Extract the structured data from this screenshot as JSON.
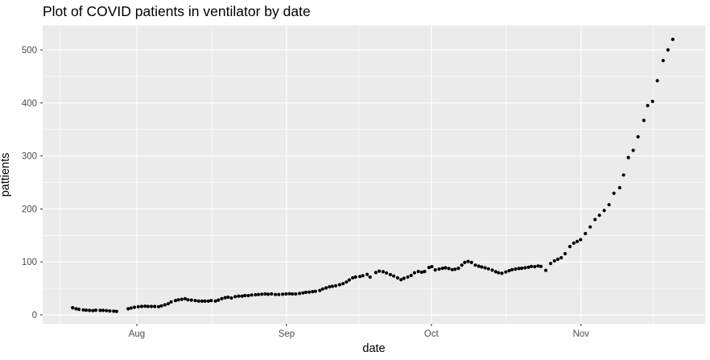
{
  "style": {
    "outer_bg": "#FFFFFF",
    "panel_bg": "#EBEBEB",
    "grid_color": "#FFFFFF",
    "axis_text_color": "#4D4D4D",
    "tick_mark_color": "#333333",
    "text_color": "#000000",
    "point_color": "#000000"
  },
  "chart_data": {
    "type": "scatter",
    "title": "Plot of COVID patients in ventilator by date",
    "xlabel": "date",
    "ylabel": "pattients",
    "x_unit": "days relative to Aug 1 (negative values = July dates)",
    "x_domain": [
      -19.5,
      117.7
    ],
    "y_domain": [
      -16.7,
      546.4
    ],
    "x_ticks": [
      {
        "label": "Aug",
        "day": 0
      },
      {
        "label": "Sep",
        "day": 31
      },
      {
        "label": "Oct",
        "day": 61
      },
      {
        "label": "Nov",
        "day": 92
      }
    ],
    "x_minor_days": [
      -16,
      15.5,
      46,
      76.5,
      107
    ],
    "y_ticks": [
      0,
      100,
      200,
      300,
      400,
      500
    ],
    "y_minor_ticks": [
      50,
      150,
      250,
      350,
      450
    ],
    "grid": "major+minor",
    "legend": "none",
    "series": [
      {
        "name": "patients",
        "points": [
          [
            -13.3,
            13.5
          ],
          [
            -12.6,
            11.5
          ],
          [
            -12,
            10.5
          ],
          [
            -11.1,
            9.5
          ],
          [
            -10.5,
            9
          ],
          [
            -9.8,
            8.5
          ],
          [
            -9.1,
            8
          ],
          [
            -8.5,
            9
          ],
          [
            -7.6,
            8.5
          ],
          [
            -7,
            8.5
          ],
          [
            -6.3,
            8
          ],
          [
            -5.6,
            7.5
          ],
          [
            -4.8,
            7
          ],
          [
            -4.2,
            6.5
          ],
          [
            -1.8,
            11.5
          ],
          [
            -1.2,
            13
          ],
          [
            -0.5,
            14.5
          ],
          [
            0.3,
            15.5
          ],
          [
            1,
            16
          ],
          [
            1.7,
            16.5
          ],
          [
            2.3,
            16
          ],
          [
            3,
            16
          ],
          [
            3.7,
            16
          ],
          [
            4.5,
            15.5
          ],
          [
            5.1,
            17
          ],
          [
            5.8,
            19
          ],
          [
            6.5,
            21
          ],
          [
            7.1,
            24.5
          ],
          [
            8,
            27
          ],
          [
            8.6,
            28.5
          ],
          [
            9.3,
            29.5
          ],
          [
            10,
            30.5
          ],
          [
            10.6,
            28.5
          ],
          [
            11.3,
            28
          ],
          [
            12.1,
            27
          ],
          [
            12.8,
            26
          ],
          [
            13.5,
            26
          ],
          [
            14.1,
            26
          ],
          [
            14.8,
            26
          ],
          [
            15.4,
            27
          ],
          [
            16.3,
            26
          ],
          [
            16.9,
            28
          ],
          [
            17.6,
            30.5
          ],
          [
            18.3,
            32.5
          ],
          [
            18.9,
            33.5
          ],
          [
            19.6,
            32
          ],
          [
            20.4,
            34.5
          ],
          [
            21.1,
            35.5
          ],
          [
            21.8,
            35.5
          ],
          [
            22.4,
            36.5
          ],
          [
            23.1,
            36.5
          ],
          [
            23.8,
            37.5
          ],
          [
            24.6,
            38
          ],
          [
            25.2,
            38.5
          ],
          [
            25.9,
            39
          ],
          [
            26.6,
            39.5
          ],
          [
            27.2,
            39
          ],
          [
            27.9,
            39.5
          ],
          [
            28.7,
            38.5
          ],
          [
            29.4,
            38.5
          ],
          [
            30.2,
            39
          ],
          [
            30.9,
            39.5
          ],
          [
            31.6,
            40
          ],
          [
            32.2,
            39.5
          ],
          [
            32.9,
            39.5
          ],
          [
            33.7,
            40.5
          ],
          [
            34.4,
            41.5
          ],
          [
            35,
            42.5
          ],
          [
            35.7,
            43
          ],
          [
            36.4,
            44
          ],
          [
            37,
            44.5
          ],
          [
            37.9,
            46
          ],
          [
            38.5,
            49
          ],
          [
            39.2,
            51
          ],
          [
            39.9,
            53
          ],
          [
            40.5,
            54
          ],
          [
            41.2,
            55
          ],
          [
            42,
            57
          ],
          [
            42.7,
            59
          ],
          [
            43.4,
            62
          ],
          [
            44,
            66
          ],
          [
            44.7,
            70
          ],
          [
            45.3,
            71.5
          ],
          [
            46.2,
            72.5
          ],
          [
            46.8,
            74
          ],
          [
            47.7,
            76.5
          ],
          [
            48.3,
            71.5
          ],
          [
            49.5,
            80
          ],
          [
            50.2,
            82.5
          ],
          [
            51,
            81.5
          ],
          [
            51.7,
            79
          ],
          [
            52.5,
            76
          ],
          [
            53.2,
            73.5
          ],
          [
            54,
            70
          ],
          [
            54.7,
            66.5
          ],
          [
            55.3,
            69
          ],
          [
            56.1,
            71.5
          ],
          [
            56.8,
            74.5
          ],
          [
            57.5,
            79.5
          ],
          [
            58.3,
            82
          ],
          [
            59,
            80.5
          ],
          [
            59.6,
            82
          ],
          [
            60.5,
            89.5
          ],
          [
            61.1,
            91
          ],
          [
            61.8,
            85
          ],
          [
            62.6,
            86.5
          ],
          [
            63.3,
            88
          ],
          [
            63.9,
            89
          ],
          [
            64.6,
            87.5
          ],
          [
            65.3,
            85.5
          ],
          [
            65.9,
            86
          ],
          [
            66.6,
            88
          ],
          [
            67.3,
            94
          ],
          [
            67.9,
            99
          ],
          [
            68.6,
            101
          ],
          [
            69.3,
            99
          ],
          [
            70.1,
            94
          ],
          [
            70.8,
            92
          ],
          [
            71.4,
            90.5
          ],
          [
            72.1,
            89
          ],
          [
            72.8,
            87
          ],
          [
            73.6,
            84.5
          ],
          [
            74.3,
            81.5
          ],
          [
            74.9,
            79.5
          ],
          [
            75.6,
            78.5
          ],
          [
            76.4,
            81
          ],
          [
            77.1,
            83.5
          ],
          [
            77.7,
            85.5
          ],
          [
            78.4,
            86.5
          ],
          [
            79.1,
            87.5
          ],
          [
            79.7,
            88
          ],
          [
            80.4,
            89
          ],
          [
            81.1,
            90
          ],
          [
            81.7,
            91.5
          ],
          [
            82.4,
            91
          ],
          [
            83.1,
            92.5
          ],
          [
            83.7,
            91.5
          ],
          [
            84.7,
            84
          ],
          [
            85.7,
            97
          ],
          [
            86.5,
            102
          ],
          [
            87.2,
            105
          ],
          [
            87.9,
            108
          ],
          [
            88.7,
            115.5
          ],
          [
            89.7,
            129
          ],
          [
            90.5,
            135.5
          ],
          [
            91.2,
            138.5
          ],
          [
            91.9,
            142
          ],
          [
            92.9,
            153.5
          ],
          [
            93.9,
            166
          ],
          [
            94.9,
            180
          ],
          [
            95.8,
            188
          ],
          [
            96.8,
            197
          ],
          [
            97.8,
            208
          ],
          [
            98.8,
            229.5
          ],
          [
            100,
            240
          ],
          [
            100.8,
            264
          ],
          [
            101.8,
            297
          ],
          [
            102.8,
            310.5
          ],
          [
            103.8,
            336
          ],
          [
            105,
            367
          ],
          [
            105.8,
            395
          ],
          [
            106.8,
            403
          ],
          [
            107.8,
            442
          ],
          [
            109,
            480
          ],
          [
            110,
            500
          ],
          [
            111,
            520
          ]
        ]
      }
    ]
  }
}
